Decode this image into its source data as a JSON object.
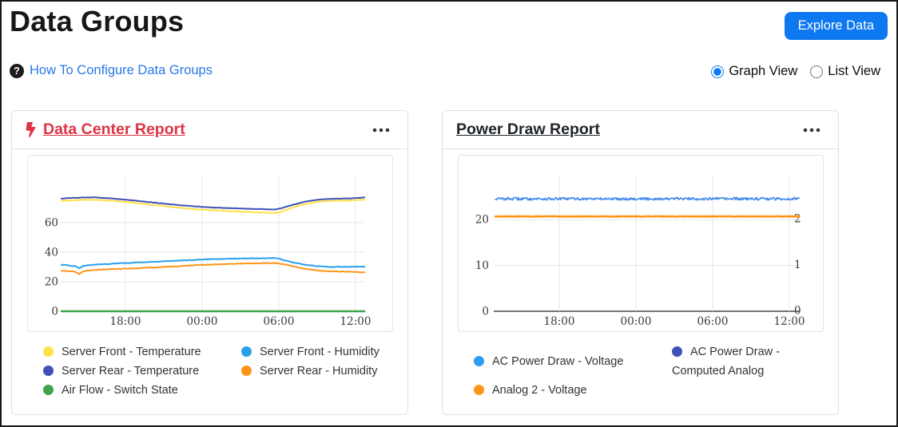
{
  "header": {
    "title": "Data Groups",
    "explore_button": "Explore Data",
    "help_link": "How To Configure Data Groups"
  },
  "view_toggle": {
    "options": [
      {
        "label": "Graph View",
        "selected": true
      },
      {
        "label": "List View",
        "selected": false
      }
    ]
  },
  "colors": {
    "accent_blue": "#0d78f0",
    "link_blue": "#2878eb",
    "danger_red": "#dc3545",
    "title_dark": "#212529"
  },
  "cards": [
    {
      "title": "Data Center Report",
      "title_color": "#dc3545",
      "has_bolt_icon": true,
      "menu_icon": "ellipsis-icon"
    },
    {
      "title": "Power Draw Report",
      "title_color": "#212529",
      "has_bolt_icon": false,
      "menu_icon": "ellipsis-icon"
    }
  ],
  "chart_data": [
    {
      "type": "line",
      "title": "Data Center Report",
      "x_tick_labels": [
        "18:00",
        "00:00",
        "06:00",
        "12:00"
      ],
      "x_tick_hours": [
        18,
        24,
        30,
        36
      ],
      "x_range": [
        13,
        36.7
      ],
      "y_ticks": [
        0,
        20,
        40,
        60
      ],
      "ylim": [
        0,
        85
      ],
      "grid": true,
      "series": [
        {
          "name": "Server Front - Temperature",
          "color": "#ffe047",
          "jitter": 0.12,
          "width": 2,
          "x": [
            13,
            13.5,
            14,
            14.4,
            14.7,
            15,
            15.5,
            16,
            17,
            18,
            19,
            20,
            21,
            22,
            23,
            24,
            25,
            26,
            27,
            28,
            29,
            29.6,
            30,
            30.5,
            31,
            32,
            33,
            33.7,
            34.5,
            35.5,
            36.7
          ],
          "values": [
            74.6,
            74.9,
            75.1,
            75.2,
            75.3,
            75.4,
            75.4,
            75.2,
            74.7,
            74.0,
            73.0,
            72.0,
            71.1,
            70.2,
            69.4,
            68.7,
            68.2,
            67.8,
            67.4,
            67.0,
            66.7,
            66.3,
            66.8,
            68.3,
            69.9,
            72.4,
            74.0,
            74.5,
            74.7,
            74.9,
            75.5
          ]
        },
        {
          "name": "Server Rear - Temperature",
          "color": "#3f51b5",
          "jitter": 0.12,
          "width": 2,
          "x": [
            13,
            13.5,
            14,
            14.4,
            14.7,
            15,
            15.5,
            16,
            17,
            18,
            19,
            20,
            21,
            22,
            23,
            24,
            25,
            26,
            27,
            28,
            29,
            29.6,
            30,
            30.5,
            31,
            32,
            33,
            33.7,
            34.5,
            35.5,
            36.7
          ],
          "values": [
            76.2,
            76.5,
            76.7,
            76.8,
            76.9,
            77.0,
            77.0,
            76.8,
            76.2,
            75.5,
            74.6,
            73.7,
            72.8,
            71.9,
            71.2,
            70.6,
            70.1,
            69.8,
            69.5,
            69.2,
            69.0,
            68.8,
            69.3,
            70.5,
            71.8,
            74.0,
            75.4,
            75.9,
            76.1,
            76.3,
            76.9
          ]
        },
        {
          "name": "Server Rear - Humidity",
          "color": "#ff9517",
          "jitter": 0.18,
          "width": 2,
          "x": [
            13,
            13.5,
            14,
            14.4,
            14.7,
            15,
            15.5,
            16,
            17,
            18,
            19,
            20,
            21,
            22,
            23,
            24,
            25,
            26,
            27,
            28,
            29,
            29.6,
            30,
            30.5,
            31,
            32,
            33,
            33.7,
            34.5,
            35.5,
            36.7
          ],
          "values": [
            27.5,
            27.2,
            26.9,
            25.1,
            27.0,
            27.6,
            27.9,
            28.1,
            28.5,
            28.8,
            29.2,
            29.6,
            30.0,
            30.4,
            30.9,
            31.4,
            31.7,
            32.0,
            32.2,
            32.4,
            32.5,
            32.5,
            32.4,
            31.6,
            30.6,
            28.8,
            27.6,
            27.1,
            26.9,
            26.7,
            26.4
          ]
        },
        {
          "name": "Server Front - Humidity",
          "color": "#2aa0ea",
          "jitter": 0.18,
          "width": 2,
          "x": [
            13,
            13.5,
            14,
            14.4,
            14.7,
            15,
            15.5,
            16,
            17,
            18,
            19,
            20,
            21,
            22,
            23,
            24,
            25,
            26,
            27,
            28,
            29,
            29.6,
            30,
            30.5,
            31,
            32,
            33,
            33.7,
            34.5,
            35.5,
            36.7
          ],
          "values": [
            31.4,
            31.0,
            30.6,
            29.2,
            30.6,
            31.1,
            31.4,
            31.7,
            32.2,
            32.6,
            33.0,
            33.4,
            33.8,
            34.2,
            34.6,
            35.0,
            35.3,
            35.5,
            35.7,
            35.8,
            35.9,
            36.0,
            35.6,
            34.3,
            33.2,
            31.6,
            30.5,
            30.1,
            30.0,
            30.0,
            30.3
          ]
        },
        {
          "name": "Air Flow - Switch State",
          "color": "#3da44b",
          "jitter": 0,
          "width": 2.4,
          "x": [
            13,
            36.7
          ],
          "values": [
            0,
            0
          ]
        }
      ],
      "legend": [
        {
          "label": "Server Front - Temperature",
          "color": "#ffe047"
        },
        {
          "label": "Server Front - Humidity",
          "color": "#2aa0ea"
        },
        {
          "label": "Server Rear - Temperature",
          "color": "#3f51b5"
        },
        {
          "label": "Server Rear - Humidity",
          "color": "#ff9517"
        },
        {
          "label": "Air Flow - Switch State",
          "color": "#3da44b"
        }
      ]
    },
    {
      "type": "line",
      "title": "Power Draw Report",
      "x_tick_labels": [
        "18:00",
        "00:00",
        "06:00",
        "12:00"
      ],
      "x_tick_hours": [
        18,
        24,
        30,
        36
      ],
      "x_range": [
        13,
        36.8
      ],
      "y_ticks": [
        0,
        10,
        20
      ],
      "y_ticks_right": [
        0,
        1,
        2
      ],
      "ylim": [
        0,
        34.5
      ],
      "grid": true,
      "series": [
        {
          "name": "Analog 2 - Voltage",
          "color": "#ff9517",
          "base": 20.7,
          "noise": 0.05,
          "width": 2.6
        },
        {
          "name": "AC Power Draw - Voltage",
          "color": "#3f87ee",
          "base": 24.55,
          "noise": 0.3,
          "width": 1.6
        }
      ],
      "legend": [
        {
          "label": "AC Power Draw - Voltage",
          "color": "#2f9cf3"
        },
        {
          "label": "AC Power Draw - Computed Analog",
          "color": "#3f51b5"
        },
        {
          "label": "Analog 2 - Voltage",
          "color": "#ff9517"
        }
      ]
    }
  ]
}
